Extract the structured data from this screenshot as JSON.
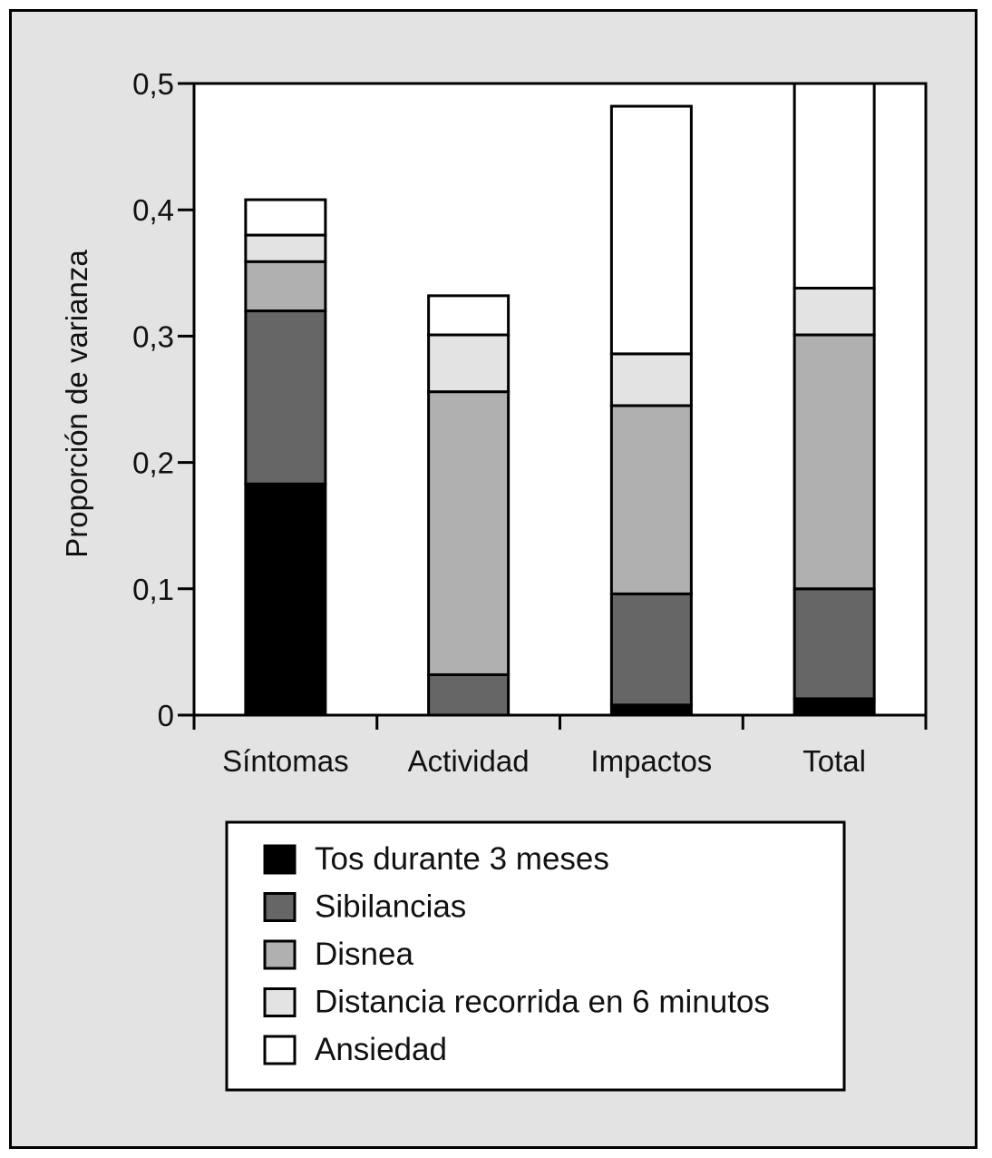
{
  "chart_data": {
    "type": "bar",
    "stacked": true,
    "title": "",
    "xlabel": "",
    "ylabel": "Proporción de varianza",
    "ylim": [
      0,
      0.5
    ],
    "yticks": [
      0,
      0.1,
      0.2,
      0.3,
      0.4,
      0.5
    ],
    "ytick_labels": [
      "0",
      "0,1",
      "0,2",
      "0,3",
      "0,4",
      "0,5"
    ],
    "categories": [
      "Síntomas",
      "Actividad",
      "Impactos",
      "Total"
    ],
    "series": [
      {
        "name": "Tos durante 3 meses",
        "color": "#000000",
        "values": [
          0.183,
          0.0,
          0.008,
          0.013
        ]
      },
      {
        "name": "Sibilancias",
        "color": "#666666",
        "values": [
          0.137,
          0.032,
          0.088,
          0.087
        ]
      },
      {
        "name": "Disnea",
        "color": "#b0b0b0",
        "values": [
          0.039,
          0.224,
          0.149,
          0.201
        ]
      },
      {
        "name": "Distancia recorrida en 6 minutos",
        "color": "#e3e3e3",
        "values": [
          0.021,
          0.045,
          0.041,
          0.037
        ]
      },
      {
        "name": "Ansiedad",
        "color": "#ffffff",
        "values": [
          0.028,
          0.031,
          0.196,
          0.162
        ]
      }
    ],
    "grid": false,
    "legend_position": "bottom"
  }
}
